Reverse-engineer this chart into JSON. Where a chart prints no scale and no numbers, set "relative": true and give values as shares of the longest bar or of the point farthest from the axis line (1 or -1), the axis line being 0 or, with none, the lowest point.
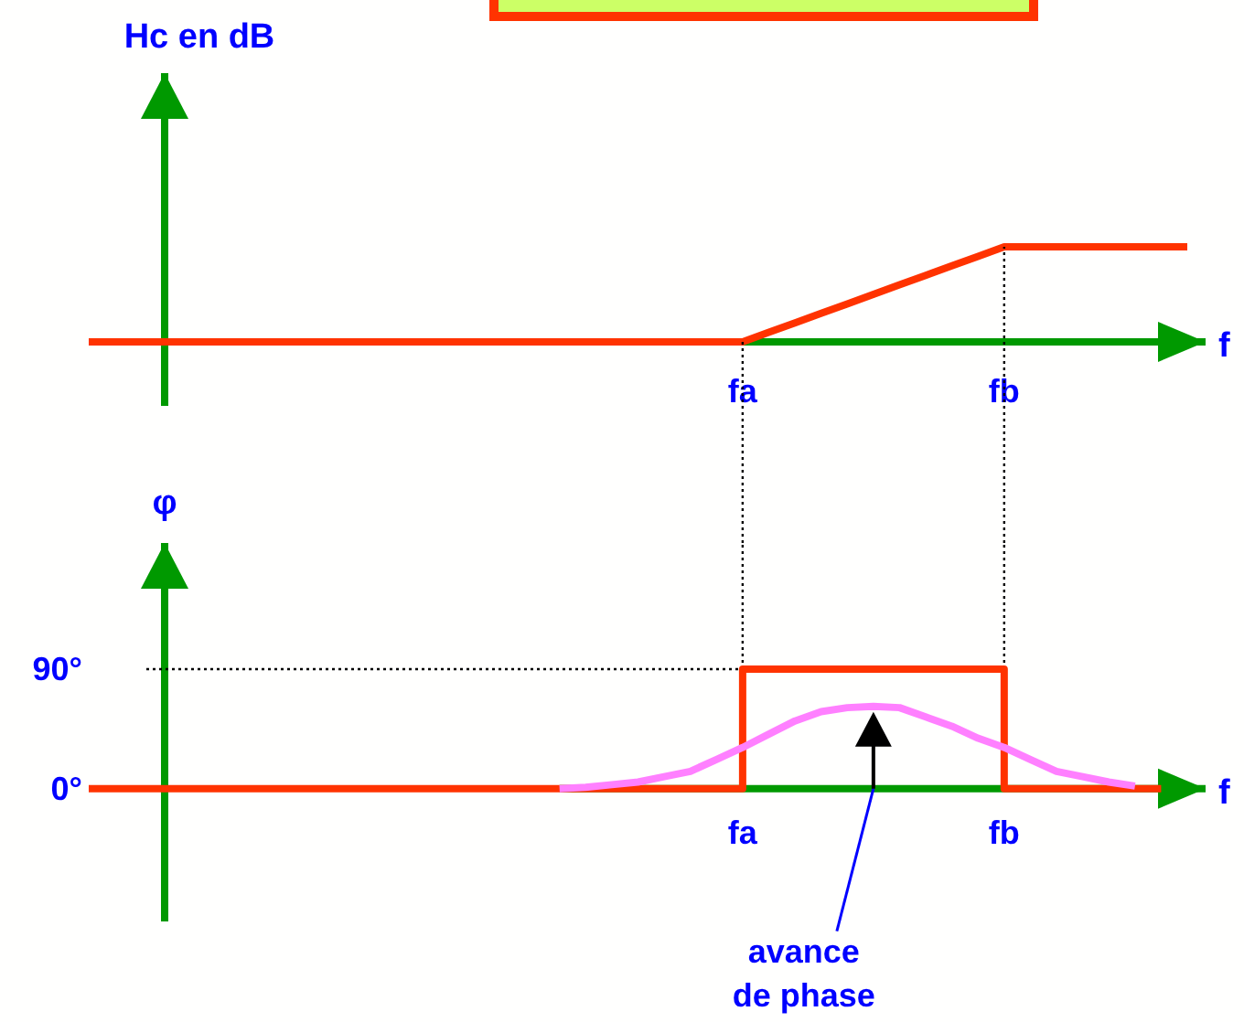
{
  "chart_data": [
    {
      "type": "line",
      "ylabel": "Hc en dB",
      "xlabel": "f",
      "relative": true,
      "categories": [
        null,
        null,
        null,
        null,
        null,
        null,
        null,
        null,
        null,
        null,
        null,
        null,
        null,
        null,
        null,
        null,
        null,
        null,
        null,
        null,
        null,
        null,
        null,
        null,
        null,
        "fa",
        null,
        null,
        null,
        null,
        null,
        null,
        null,
        null,
        null,
        "fb",
        null,
        null,
        null,
        null,
        null,
        null,
        null
      ],
      "series": [
        {
          "color": "#ff3300",
          "values": [
            0,
            0,
            0,
            0,
            0,
            0,
            0,
            0,
            0,
            0,
            0,
            0,
            0,
            0,
            0,
            0,
            0,
            0,
            0,
            0,
            0,
            0,
            0,
            0,
            0,
            0,
            0.1,
            0.2,
            0.3,
            0.4,
            0.5,
            0.6,
            0.7,
            0.8,
            0.9,
            1,
            1,
            1,
            1,
            1,
            1,
            1,
            1
          ]
        }
      ]
    },
    {
      "type": "line",
      "ylabel": "φ",
      "xlabel": "f",
      "ylim": [
        -100,
        185
      ],
      "yticks": [
        {
          "value": 0,
          "label": "0°"
        },
        {
          "value": 90,
          "label": "90°"
        }
      ],
      "categories": [
        null,
        null,
        null,
        null,
        null,
        null,
        null,
        null,
        null,
        null,
        null,
        null,
        null,
        null,
        null,
        null,
        null,
        null,
        null,
        null,
        null,
        null,
        null,
        null,
        null,
        "fa",
        null,
        null,
        null,
        null,
        null,
        null,
        null,
        null,
        null,
        "fb",
        null,
        null,
        null,
        null,
        null,
        null,
        null
      ],
      "series": [
        {
          "type": "step",
          "color": "#ff3300",
          "values": [
            0,
            0,
            0,
            0,
            0,
            0,
            0,
            0,
            0,
            0,
            0,
            0,
            0,
            0,
            0,
            0,
            0,
            0,
            0,
            0,
            0,
            0,
            0,
            0,
            0,
            90,
            90,
            90,
            90,
            90,
            90,
            90,
            90,
            90,
            90,
            0,
            0,
            0,
            0,
            0,
            0,
            0,
            null
          ]
        },
        {
          "color": "#ff80ff",
          "values": [
            null,
            null,
            null,
            null,
            null,
            null,
            null,
            null,
            null,
            null,
            null,
            null,
            null,
            null,
            null,
            null,
            null,
            null,
            0,
            1,
            3,
            5,
            9,
            13,
            22,
            31,
            41,
            51,
            58,
            61,
            62,
            61,
            54,
            47,
            38,
            31,
            22,
            13,
            9,
            5,
            2,
            null,
            null
          ]
        }
      ],
      "ref_lines": [
        {
          "axis": "x",
          "value": "fa",
          "color": "#000000",
          "line_style": "dotted"
        },
        {
          "axis": "x",
          "value": "fb",
          "color": "#000000",
          "line_style": "dotted"
        },
        {
          "axis": "y",
          "value": 90,
          "color": "#000000",
          "line_style": "dotted"
        }
      ],
      "annotations": [
        "avance\nde phase"
      ]
    }
  ]
}
